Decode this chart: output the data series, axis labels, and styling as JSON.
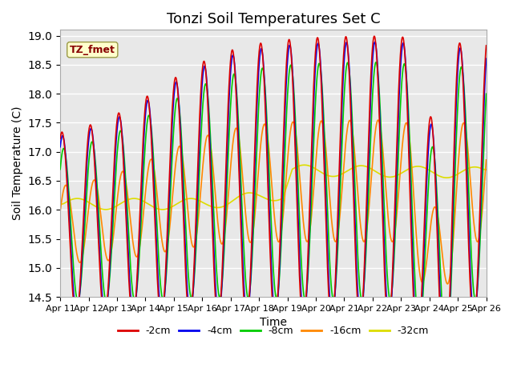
{
  "title": "Tonzi Soil Temperatures Set C",
  "xlabel": "Time",
  "ylabel": "Soil Temperature (C)",
  "ylim": [
    14.5,
    19.1
  ],
  "n_days": 15,
  "x_tick_labels": [
    "Apr 11",
    "Apr 12",
    "Apr 13",
    "Apr 14",
    "Apr 15",
    "Apr 16",
    "Apr 17",
    "Apr 18",
    "Apr 19",
    "Apr 20",
    "Apr 21",
    "Apr 22",
    "Apr 23",
    "Apr 24",
    "Apr 25",
    "Apr 26"
  ],
  "legend_labels": [
    "-2cm",
    "-4cm",
    "-8cm",
    "-16cm",
    "-32cm"
  ],
  "line_colors": [
    "#dd0000",
    "#0000ee",
    "#00cc00",
    "#ff8800",
    "#dddd00"
  ],
  "annotation_text": "TZ_fmet",
  "annotation_color": "#880000",
  "annotation_bg": "#ffffcc",
  "plot_bg": "#e8e8e8",
  "grid_color": "#ffffff",
  "title_fontsize": 13,
  "axis_fontsize": 10,
  "tick_fontsize": 8
}
